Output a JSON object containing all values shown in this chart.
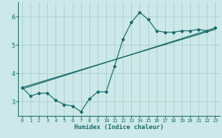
{
  "xlabel": "Humidex (Indice chaleur)",
  "xlim": [
    -0.5,
    23.5
  ],
  "ylim": [
    2.5,
    6.5
  ],
  "xticks": [
    0,
    1,
    2,
    3,
    4,
    5,
    6,
    7,
    8,
    9,
    10,
    11,
    12,
    13,
    14,
    15,
    16,
    17,
    18,
    19,
    20,
    21,
    22,
    23
  ],
  "yticks": [
    3,
    4,
    5,
    6
  ],
  "background_color": "#cce8e8",
  "grid_color": "#aacccc",
  "line_color": "#1a6b6b",
  "line1_x": [
    0,
    1,
    2,
    3,
    4,
    5,
    6,
    7,
    8,
    9,
    10,
    11,
    12,
    13,
    14,
    15,
    16,
    17,
    18,
    19,
    20,
    21,
    22,
    23
  ],
  "line1_y": [
    3.5,
    3.2,
    3.3,
    3.3,
    3.05,
    2.9,
    2.85,
    2.65,
    3.1,
    3.35,
    3.35,
    4.25,
    5.2,
    5.8,
    6.15,
    5.9,
    5.5,
    5.45,
    5.45,
    5.5,
    5.5,
    5.55,
    5.5,
    5.6
  ],
  "line2_x": [
    0,
    23
  ],
  "line2_y": [
    3.5,
    5.55
  ],
  "line3_x": [
    0,
    23
  ],
  "line3_y": [
    3.45,
    5.6
  ]
}
